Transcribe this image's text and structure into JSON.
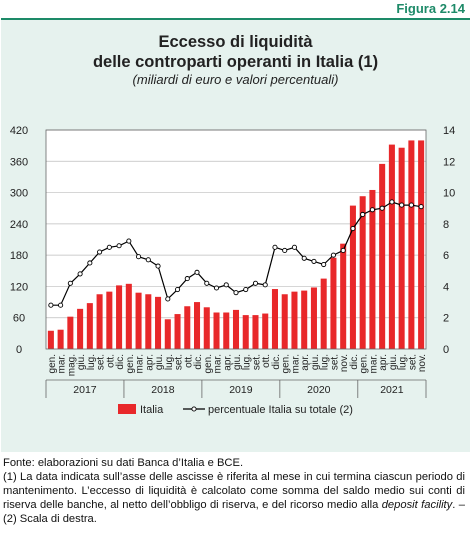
{
  "figure_label": "Figura 2.14",
  "title_line1": "Eccesso di liquidità",
  "title_line2": "delle controparti operanti in Italia (1)",
  "subtitle": "(miliardi di euro e valori percentuali)",
  "notes": {
    "source": "Fonte: elaborazioni su dati Banca d’Italia e BCE.",
    "note1_prefix": "(1) La data indicata sull’asse delle ascisse è riferita al mese in cui termina ciascun periodo di mantenimento. L’eccesso di liquidità è calcolato come somma del saldo medio sui conti di riserva delle banche, al netto dell’obbligo di riserva, e del ricorso medio alla ",
    "note1_italic": "deposit facility",
    "note1_suffix": ". – (2) Scala di destra."
  },
  "colors": {
    "bar": "#e8282a",
    "line": "#000000",
    "panel": "#e6f2ee",
    "accent": "#1d8a68"
  },
  "chart_data": {
    "type": "bar",
    "categories": [
      "gen.",
      "mar.",
      "mag.",
      "giu.",
      "lug.",
      "set.",
      "ott.",
      "dic.",
      "gen.",
      "mar.",
      "apr.",
      "giu.",
      "lug.",
      "set.",
      "ott.",
      "dic.",
      "gen.",
      "mar.",
      "apr.",
      "giu.",
      "lug.",
      "set.",
      "ott.",
      "dic.",
      "gen.",
      "mar.",
      "apr.",
      "giu.",
      "lug.",
      "set.",
      "nov.",
      "dic.",
      "gen.",
      "mar.",
      "apr.",
      "giu.",
      "lug.",
      "set.",
      "nov."
    ],
    "years": [
      {
        "label": "2017",
        "start": 0,
        "end": 7
      },
      {
        "label": "2018",
        "start": 8,
        "end": 15
      },
      {
        "label": "2019",
        "start": 16,
        "end": 23
      },
      {
        "label": "2020",
        "start": 24,
        "end": 31
      },
      {
        "label": "2021",
        "start": 32,
        "end": 38
      }
    ],
    "series": [
      {
        "name": "Italia",
        "type": "bar",
        "axis": "left",
        "values": [
          35,
          37,
          62,
          77,
          88,
          105,
          110,
          122,
          125,
          108,
          105,
          100,
          57,
          67,
          82,
          90,
          80,
          70,
          70,
          75,
          65,
          65,
          68,
          115,
          105,
          110,
          112,
          118,
          135,
          175,
          202,
          275,
          293,
          305,
          355,
          392,
          386,
          400,
          400
        ]
      },
      {
        "name": "percentuale Italia su totale (2)",
        "type": "line",
        "axis": "right",
        "values": [
          2.8,
          2.8,
          4.2,
          4.8,
          5.5,
          6.2,
          6.5,
          6.6,
          6.9,
          5.9,
          5.7,
          5.3,
          3.2,
          3.8,
          4.5,
          4.9,
          4.2,
          3.9,
          4.1,
          3.6,
          3.8,
          4.2,
          4.1,
          6.5,
          6.3,
          6.5,
          5.8,
          5.6,
          5.4,
          6.0,
          6.3,
          7.7,
          8.6,
          8.9,
          9.0,
          9.4,
          9.2,
          9.2,
          9.1
        ]
      }
    ],
    "y_left": {
      "min": 0,
      "max": 420,
      "ticks": [
        0,
        60,
        120,
        180,
        240,
        300,
        360,
        420
      ]
    },
    "y_right": {
      "min": 0,
      "max": 14,
      "ticks": [
        0,
        2,
        4,
        6,
        8,
        10,
        12,
        14
      ]
    },
    "grid": true,
    "legend_position": "bottom"
  }
}
